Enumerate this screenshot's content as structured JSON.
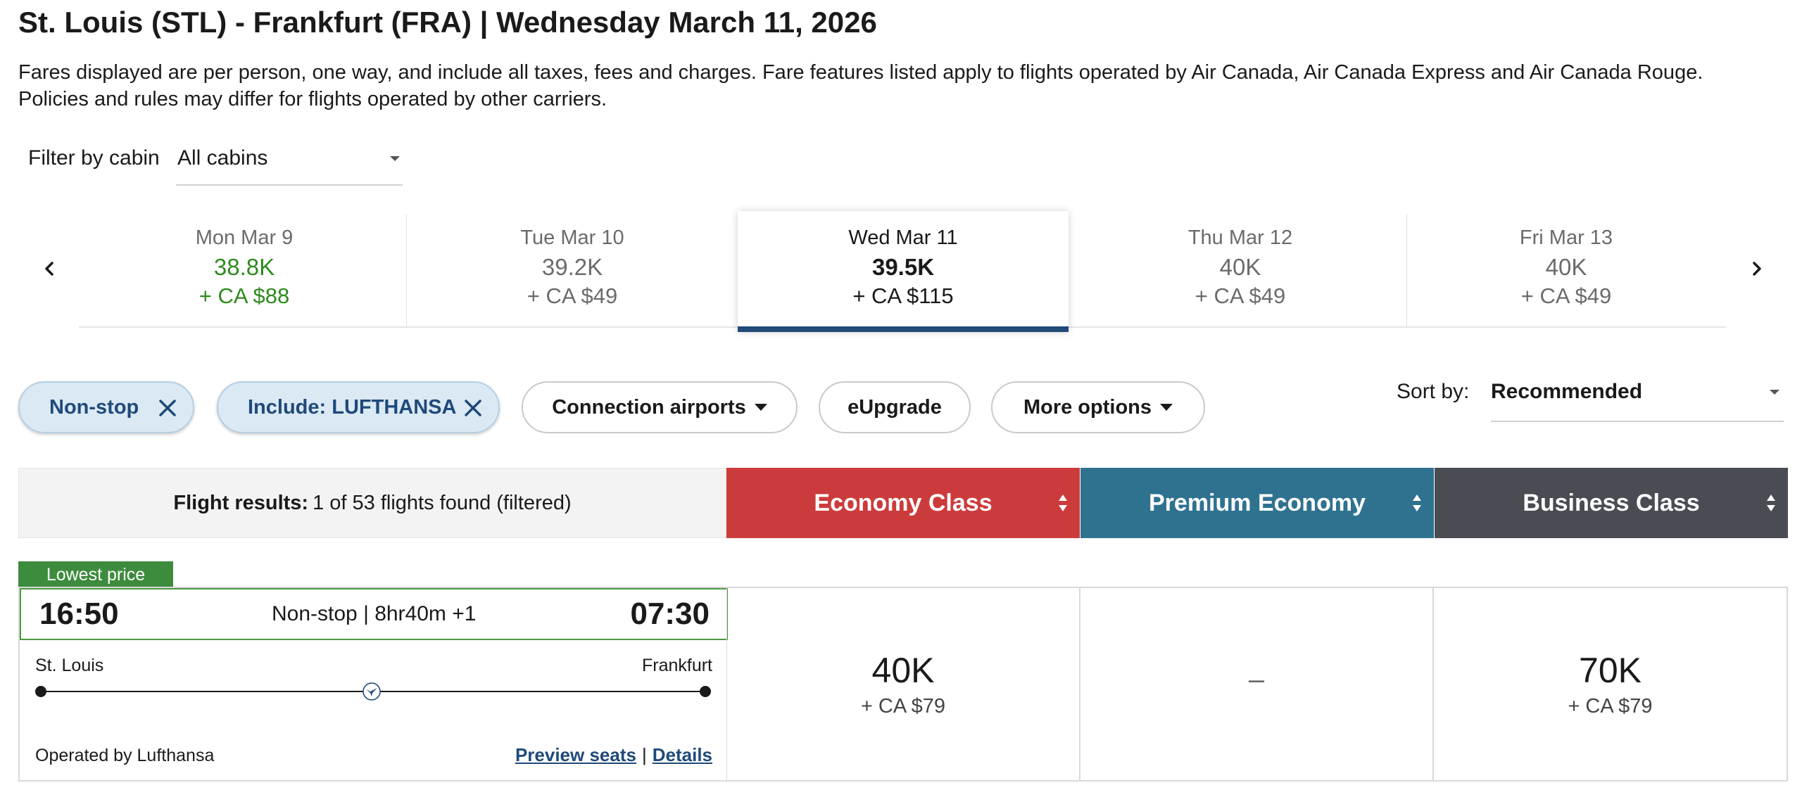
{
  "header": {
    "title": "St. Louis (STL) - Frankfurt (FRA)  |  Wednesday March 11, 2026",
    "disclaimer": "Fares displayed are per person, one way, and include all taxes, fees and charges. Fare features listed apply to flights operated by Air Canada, Air Canada Express and Air Canada Rouge. Policies and rules may differ for flights operated by other carriers."
  },
  "cabin_filter": {
    "label": "Filter by cabin",
    "value": "All cabins"
  },
  "date_strip": {
    "prev_icon": "chevron-left-icon",
    "next_icon": "chevron-right-icon",
    "dates": [
      {
        "label": "Mon Mar 9",
        "points": "38.8K",
        "cash": "+ CA $88",
        "state": "lowest"
      },
      {
        "label": "Tue Mar 10",
        "points": "39.2K",
        "cash": "+ CA $49",
        "state": "normal"
      },
      {
        "label": "Wed Mar 11",
        "points": "39.5K",
        "cash": "+ CA $115",
        "state": "selected"
      },
      {
        "label": "Thu Mar 12",
        "points": "40K",
        "cash": "+ CA $49",
        "state": "normal"
      },
      {
        "label": "Fri Mar 13",
        "points": "40K",
        "cash": "+ CA $49",
        "state": "normal"
      }
    ]
  },
  "filters": {
    "active": [
      {
        "label": "Non-stop"
      },
      {
        "label": "Include: LUFTHANSA"
      }
    ],
    "connection_airports": "Connection airports",
    "eupgrade": "eUpgrade",
    "more_options": "More options"
  },
  "sort": {
    "label": "Sort by:",
    "value": "Recommended"
  },
  "results": {
    "label": "Flight results:",
    "count_text": "1 of 53 flights found (filtered)"
  },
  "cabins": {
    "economy": {
      "label": "Economy Class",
      "color": "#cc3b3b"
    },
    "premium": {
      "label": "Premium Economy",
      "color": "#2f7290"
    },
    "business": {
      "label": "Business Class",
      "color": "#4a4c53"
    }
  },
  "flight": {
    "badge": "Lowest price",
    "departure_time": "16:50",
    "arrival_time": "07:30",
    "duration": "Non-stop | 8hr40m +1",
    "origin_city": "St. Louis",
    "destination_city": "Frankfurt",
    "operated_by": "Operated by Lufthansa",
    "preview_seats": "Preview seats",
    "separator": "|",
    "details": "Details",
    "fares": {
      "economy": {
        "points": "40K",
        "cash": "+ CA $79"
      },
      "premium": {
        "unavailable": "–"
      },
      "business": {
        "points": "70K",
        "cash": "+ CA $79"
      }
    }
  },
  "colors": {
    "accent_navy": "#1f4a7a",
    "lowest_green": "#2e8b1e",
    "chip_bg": "#dbe9f4"
  }
}
